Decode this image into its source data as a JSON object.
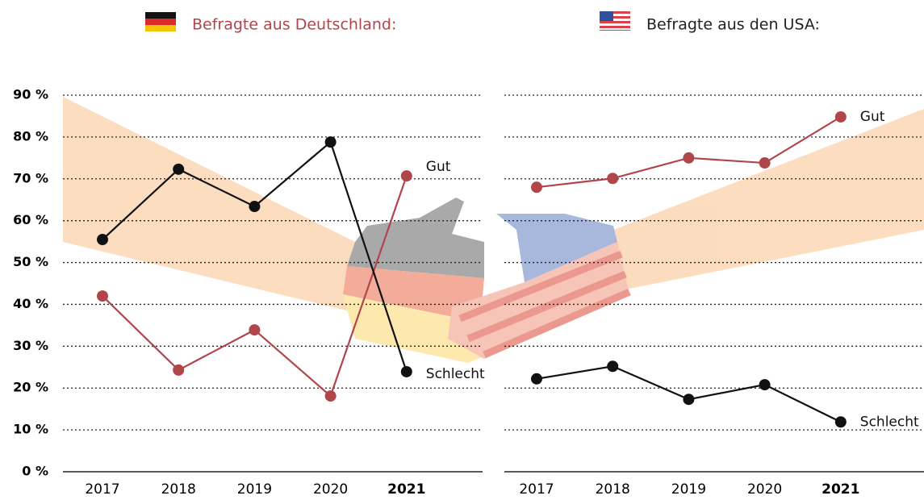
{
  "chart_data": [
    {
      "type": "line",
      "title": "Befragte aus Deutschland:",
      "title_color": "#b0454a",
      "categories": [
        "2017",
        "2018",
        "2019",
        "2020",
        "2021"
      ],
      "series": [
        {
          "name": "Gut",
          "color": "#b0454a",
          "values": [
            42,
            24.3,
            33.9,
            18.1,
            70.7
          ]
        },
        {
          "name": "Schlecht",
          "color": "#111111",
          "values": [
            55.5,
            72.3,
            63.4,
            78.8,
            23.9
          ]
        }
      ],
      "ylim": [
        0,
        90
      ],
      "yticks": [
        {
          "value": 0,
          "label": "0 %"
        },
        {
          "value": 10,
          "label": "10 %"
        },
        {
          "value": 20,
          "label": "20 %"
        },
        {
          "value": 30,
          "label": "30 %"
        },
        {
          "value": 40,
          "label": "40 %"
        },
        {
          "value": 50,
          "label": "50 %"
        },
        {
          "value": 60,
          "label": "60 %"
        },
        {
          "value": 70,
          "label": "70 %"
        },
        {
          "value": 80,
          "label": "80 %"
        },
        {
          "value": 90,
          "label": "90 %"
        }
      ],
      "grid": true
    },
    {
      "type": "line",
      "title": "Befragte aus den USA:",
      "title_color": "#222222",
      "categories": [
        "2017",
        "2018",
        "2019",
        "2020",
        "2021"
      ],
      "series": [
        {
          "name": "Gut",
          "color": "#b0454a",
          "values": [
            68,
            70.1,
            75,
            73.8,
            84.8
          ]
        },
        {
          "name": "Schlecht",
          "color": "#111111",
          "values": [
            22.2,
            25.2,
            17.3,
            20.8,
            11.9
          ]
        }
      ],
      "ylim": [
        0,
        90
      ],
      "yticks": [
        0,
        10,
        20,
        30,
        40,
        50,
        60,
        70,
        80,
        90
      ],
      "grid": true
    }
  ]
}
